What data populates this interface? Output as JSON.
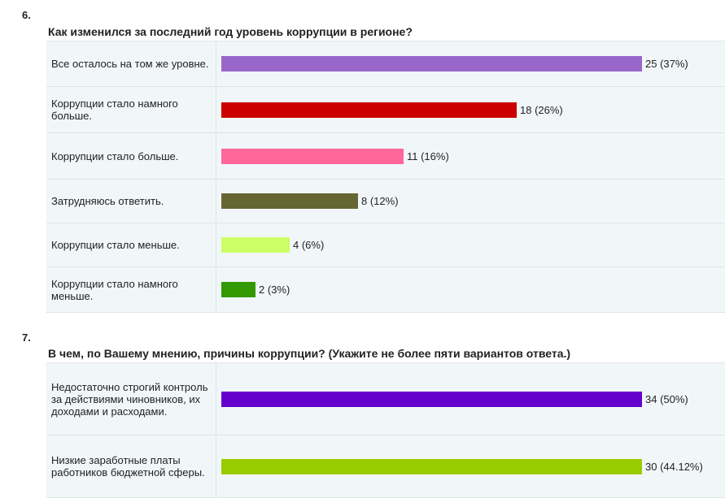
{
  "chart_data": [
    {
      "type": "bar",
      "orientation": "horizontal",
      "number": "6.",
      "title": "Как изменился за последний год уровень коррупции в регионе?",
      "bar_scale_max": 37,
      "rows": [
        {
          "label": "Все осталось на том же уровне.",
          "count": 25,
          "percent": 37,
          "value_text": "25 (37%)",
          "color": "#9966cc"
        },
        {
          "label": "Коррупции стало намного больше.",
          "count": 18,
          "percent": 26,
          "value_text": "18 (26%)",
          "color": "#cc0000"
        },
        {
          "label": "Коррупции стало больше.",
          "count": 11,
          "percent": 16,
          "value_text": "11 (16%)",
          "color": "#ff6699"
        },
        {
          "label": "Затрудняюсь ответить.",
          "count": 8,
          "percent": 12,
          "value_text": "8 (12%)",
          "color": "#666633"
        },
        {
          "label": "Коррупции стало меньше.",
          "count": 4,
          "percent": 6,
          "value_text": "4 (6%)",
          "color": "#ccff66"
        },
        {
          "label": "Коррупции стало намного меньше.",
          "count": 2,
          "percent": 3,
          "value_text": "2 (3%)",
          "color": "#339900"
        }
      ]
    },
    {
      "type": "bar",
      "orientation": "horizontal",
      "number": "7.",
      "title": "В чем, по Вашему мнению, причины коррупции? (Укажите не более пяти вариантов ответа.)",
      "bar_scale_max": 37,
      "rows": [
        {
          "label": "Недостаточно строгий контроль за действиями чиновников, их доходами и расходами.",
          "count": 34,
          "percent": 50,
          "value_text": "34 (50%)",
          "color": "#6600cc"
        },
        {
          "label": "Низкие заработные платы работников бюджетной сферы.",
          "count": 30,
          "percent": 44.12,
          "value_text": "30 (44.12%)",
          "color": "#99cc00"
        }
      ]
    }
  ]
}
